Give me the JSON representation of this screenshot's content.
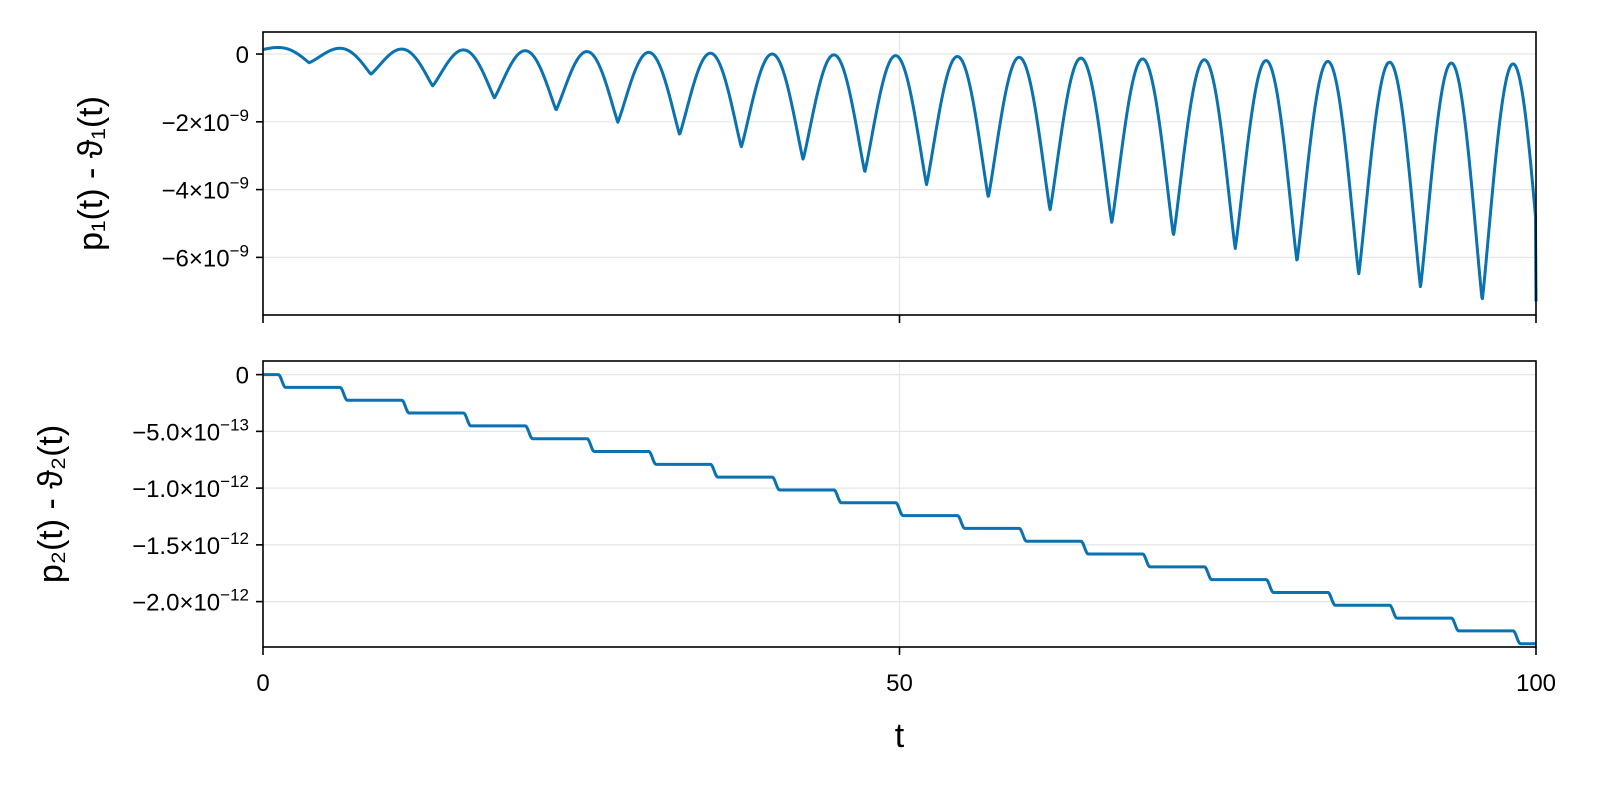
{
  "chart_data": [
    {
      "type": "line",
      "panel": "top",
      "ylabel": "p₁(t) - ϑ₁(t)",
      "xlim": [
        0,
        100
      ],
      "ylim": [
        -7.7e-09,
        6.5e-10
      ],
      "grid": true,
      "x_ticks": [
        {
          "value": 0,
          "label": ""
        },
        {
          "value": 50,
          "label": ""
        },
        {
          "value": 100,
          "label": ""
        }
      ],
      "y_ticks": [
        {
          "value": 0,
          "base": "0",
          "exp": ""
        },
        {
          "value": -2e-09,
          "base": "−2×10",
          "exp": "−9"
        },
        {
          "value": -4e-09,
          "base": "−4×10",
          "exp": "−9"
        },
        {
          "value": -6e-09,
          "base": "−6×10",
          "exp": "−9"
        }
      ],
      "series": [
        {
          "color": "#0a72b0",
          "model": "oscillation",
          "x": [
            0,
            100
          ],
          "period": 4.85,
          "phase": 1.2,
          "trough_depth": [
            2.2e-10,
            7.3e-09
          ],
          "peak_level": [
            2e-10,
            -3e-10
          ],
          "end_value": -7.3e-09
        }
      ]
    },
    {
      "type": "line",
      "panel": "bottom",
      "xlabel": "t",
      "ylabel": "p₂(t) - ϑ₂(t)",
      "xlim": [
        0,
        100
      ],
      "ylim": [
        -2.4e-12,
        1.2e-13
      ],
      "grid": true,
      "x_ticks": [
        {
          "value": 0,
          "label": "0"
        },
        {
          "value": 50,
          "label": "50"
        },
        {
          "value": 100,
          "label": "100"
        }
      ],
      "y_ticks": [
        {
          "value": 0,
          "base": "0",
          "exp": ""
        },
        {
          "value": -5e-13,
          "base": "−5.0×10",
          "exp": "−13"
        },
        {
          "value": -1e-12,
          "base": "−1.0×10",
          "exp": "−12"
        },
        {
          "value": -1.5e-12,
          "base": "−1.5×10",
          "exp": "−12"
        },
        {
          "value": -2e-12,
          "base": "−2.0×10",
          "exp": "−12"
        }
      ],
      "series": [
        {
          "color": "#0a72b0",
          "model": "staircase",
          "x": [
            0,
            100
          ],
          "start_value": 0,
          "end_value": -2.3e-12,
          "step_period": 4.85,
          "step_phase": 1.2
        }
      ]
    }
  ]
}
